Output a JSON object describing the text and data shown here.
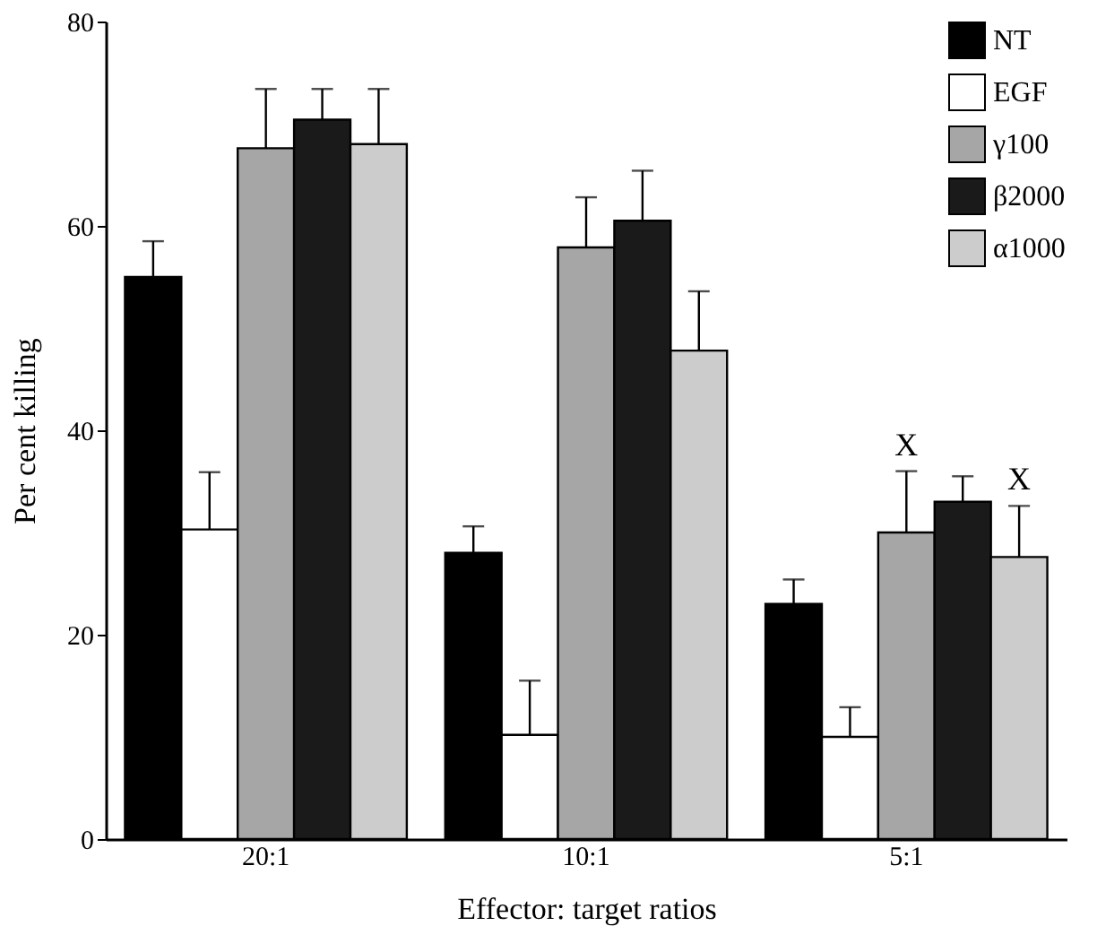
{
  "chart_data": {
    "type": "bar",
    "xlabel": "Effector: target ratios",
    "ylabel": "Per cent killing",
    "categories": [
      "20:1",
      "10:1",
      "5:1"
    ],
    "series": [
      {
        "name": "NT",
        "color": "#000000",
        "values": [
          55,
          28,
          23
        ],
        "errors": [
          [
            55,
            58.5
          ],
          [
            28,
            30.6
          ],
          [
            23,
            25.4
          ]
        ]
      },
      {
        "name": "EGF",
        "color": "#ffffff",
        "values": [
          30.3,
          10.2,
          10
        ],
        "errors": [
          [
            30.3,
            35.9
          ],
          [
            10.2,
            15.5
          ],
          [
            10,
            12.9
          ]
        ]
      },
      {
        "name": "γ100",
        "color": "#a6a6a6",
        "values": [
          67.6,
          57.9,
          30
        ],
        "errors": [
          [
            67.6,
            73.4
          ],
          [
            57.9,
            62.8
          ],
          [
            30,
            36
          ]
        ]
      },
      {
        "name": "β2000",
        "color": "#1a1a1a",
        "values": [
          70.4,
          60.5,
          33
        ],
        "errors": [
          [
            70.4,
            73.4
          ],
          [
            60.5,
            65.4
          ],
          [
            33,
            35.5
          ]
        ]
      },
      {
        "name": "α1000",
        "color": "#cccccc",
        "values": [
          68,
          47.8,
          27.6
        ],
        "errors": [
          [
            68,
            73.4
          ],
          [
            47.8,
            53.6
          ],
          [
            27.6,
            32.6
          ]
        ]
      }
    ],
    "ylim": [
      0,
      80
    ],
    "yticks": [
      0,
      20,
      40,
      60,
      80
    ],
    "grid": false,
    "legend": "top right",
    "annotations": [
      {
        "text": "X",
        "x": "5:1",
        "y": 36
      },
      {
        "text": "X",
        "y": 32.6
      }
    ]
  }
}
